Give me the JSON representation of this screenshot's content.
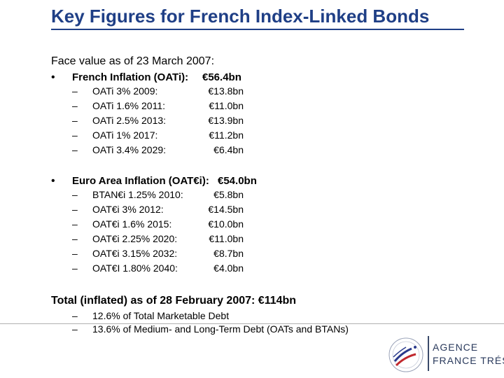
{
  "title": "Key Figures for French Index-Linked Bonds",
  "face_value_heading": "Face value as of 23 March 2007:",
  "bullet_glyph": "•",
  "dash_glyph": "–",
  "groups": [
    {
      "heading_label": "French Inflation (OATi):",
      "heading_value": "€56.4bn",
      "items": [
        {
          "label": "OATi 3% 2009:",
          "value": "€13.8bn"
        },
        {
          "label": "OATi 1.6% 2011:",
          "value": "€11.0bn"
        },
        {
          "label": "OATi 2.5% 2013:",
          "value": "€13.9bn"
        },
        {
          "label": "OATi 1% 2017:",
          "value": "€11.2bn"
        },
        {
          "label": "OATi 3.4% 2029:",
          "value": "€6.4bn"
        }
      ]
    },
    {
      "heading_label": "Euro Area Inflation (OAT€i):",
      "heading_value": "€54.0bn",
      "items": [
        {
          "label": "BTAN€i 1.25% 2010:",
          "value": "€5.8bn"
        },
        {
          "label": "OAT€i 3% 2012:",
          "value": "€14.5bn"
        },
        {
          "label": "OAT€i 1.6% 2015:",
          "value": "€10.0bn"
        },
        {
          "label": "OAT€i 2.25% 2020:",
          "value": "€11.0bn"
        },
        {
          "label": "OAT€i 3.15% 2032:",
          "value": "€8.7bn"
        },
        {
          "label": "OAT€I 1.80% 2040:",
          "value": "€4.0bn"
        }
      ]
    }
  ],
  "total": {
    "label": "Total (inflated) as of 28 February 2007:",
    "value": "€114bn",
    "items": [
      "12.6% of Total Marketable Debt",
      "13.6% of Medium- and Long-Term Debt (OATs and BTANs)"
    ]
  },
  "logo": {
    "line1": "AGENCE",
    "line2": "FRANCE TRÉSOR",
    "colors": {
      "blue": "#2a3a8c",
      "red": "#c0282d",
      "text": "#2a3a5c"
    }
  }
}
